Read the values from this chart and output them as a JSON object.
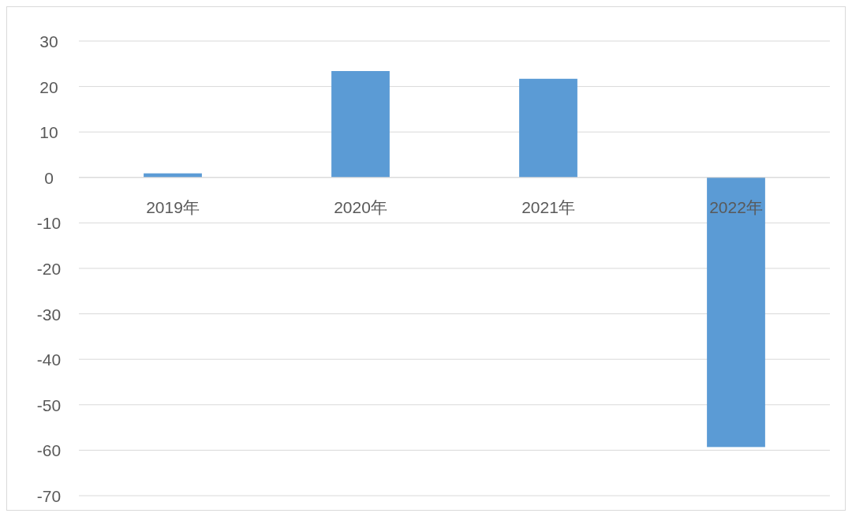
{
  "chart_data": {
    "type": "bar",
    "categories": [
      "2019年",
      "2020年",
      "2021年",
      "2022年"
    ],
    "values": [
      0.9,
      23.4,
      21.7,
      -59.3
    ],
    "color": "#5b9bd5",
    "ylim": [
      -70,
      30
    ],
    "yticks": [
      -70,
      -60,
      -50,
      -40,
      -30,
      -20,
      -10,
      0,
      10,
      20,
      30
    ],
    "grid": "y"
  }
}
